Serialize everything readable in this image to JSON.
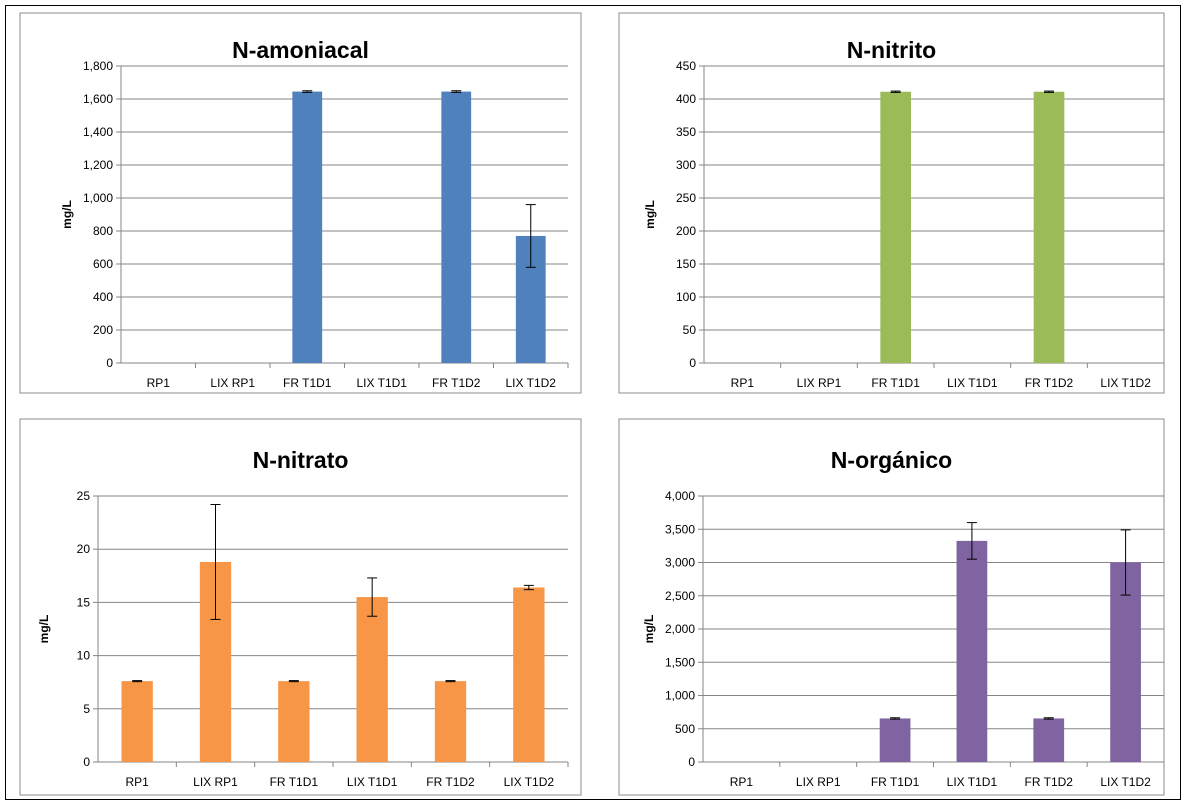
{
  "chart_data": [
    {
      "type": "bar",
      "title": "N-amoniacal",
      "ylabel": "mg/L",
      "categories": [
        "RP1",
        "LIX RP1",
        "FR T1D1",
        "LIX T1D1",
        "FR T1D2",
        "LIX T1D2"
      ],
      "values": [
        0,
        0,
        1645,
        0,
        1645,
        770
      ],
      "errors": [
        0,
        0,
        5,
        0,
        5,
        190
      ],
      "ylim": [
        0,
        1800
      ],
      "yticks": [
        0,
        200,
        400,
        600,
        800,
        1000,
        1200,
        1400,
        1600,
        1800
      ],
      "ytick_labels": [
        "0",
        "200",
        "400",
        "600",
        "800",
        "1,000",
        "1,200",
        "1,400",
        "1,600",
        "1,800"
      ],
      "grid": true,
      "color": "#4F81BD"
    },
    {
      "type": "bar",
      "title": "N-nitrito",
      "ylabel": "mg/L",
      "categories": [
        "RP1",
        "LIX RP1",
        "FR T1D1",
        "LIX T1D1",
        "FR T1D2",
        "LIX T1D2"
      ],
      "values": [
        0,
        0,
        411,
        0,
        411,
        0
      ],
      "errors": [
        0,
        0,
        1,
        0,
        1,
        0
      ],
      "ylim": [
        0,
        450
      ],
      "yticks": [
        0,
        50,
        100,
        150,
        200,
        250,
        300,
        350,
        400,
        450
      ],
      "ytick_labels": [
        "0",
        "50",
        "100",
        "150",
        "200",
        "250",
        "300",
        "350",
        "400",
        "450"
      ],
      "grid": true,
      "color": "#9BBB59"
    },
    {
      "type": "bar",
      "title": "N-nitrato",
      "ylabel": "mg/L",
      "categories": [
        "RP1",
        "LIX RP1",
        "FR T1D1",
        "LIX T1D1",
        "FR T1D2",
        "LIX T1D2"
      ],
      "values": [
        7.6,
        18.8,
        7.6,
        15.5,
        7.6,
        16.4
      ],
      "errors": [
        0.05,
        5.4,
        0.05,
        1.8,
        0.05,
        0.2
      ],
      "ylim": [
        0,
        25
      ],
      "yticks": [
        0,
        5,
        10,
        15,
        20,
        25
      ],
      "ytick_labels": [
        "0",
        "5",
        "10",
        "15",
        "20",
        "25"
      ],
      "grid": true,
      "color": "#F79646"
    },
    {
      "type": "bar",
      "title": "N-orgánico",
      "ylabel": "mg/L",
      "categories": [
        "RP1",
        "LIX RP1",
        "FR T1D1",
        "LIX T1D1",
        "FR T1D2",
        "LIX T1D2"
      ],
      "values": [
        0,
        0,
        655,
        3325,
        655,
        3000
      ],
      "errors": [
        0,
        0,
        10,
        275,
        10,
        490
      ],
      "ylim": [
        0,
        4000
      ],
      "yticks": [
        0,
        500,
        1000,
        1500,
        2000,
        2500,
        3000,
        3500,
        4000
      ],
      "ytick_labels": [
        "0",
        "500",
        "1,000",
        "1,500",
        "2,000",
        "2,500",
        "3,000",
        "3,500",
        "4,000"
      ],
      "grid": true,
      "color": "#8064A2"
    }
  ]
}
